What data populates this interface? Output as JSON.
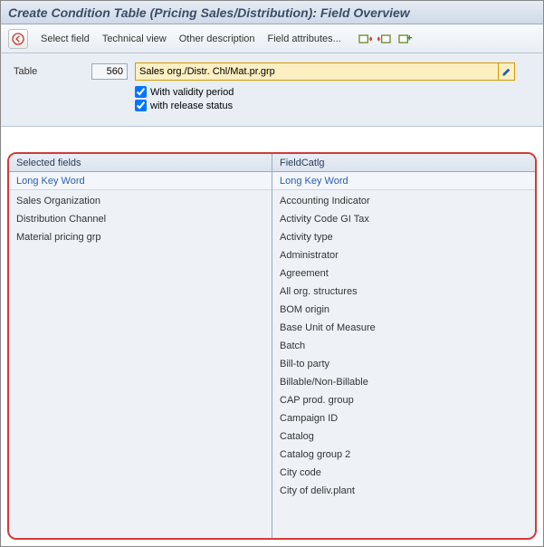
{
  "title": "Create Condition Table (Pricing Sales/Distribution): Field Overview",
  "toolbar": {
    "select_field": "Select field",
    "technical_view": "Technical view",
    "other_desc": "Other description",
    "field_attrs": "Field attributes..."
  },
  "form": {
    "table_label": "Table",
    "table_num": "560",
    "description": "Sales org./Distr. Chl/Mat.pr.grp",
    "validity_label": "With validity period",
    "release_label": "with release status",
    "validity_checked": true,
    "release_checked": true
  },
  "panels": {
    "selected_header": "Selected fields",
    "catalog_header": "FieldCatlg",
    "sub_header": "Long Key Word"
  },
  "selected_fields": [
    "Sales Organization",
    "Distribution Channel",
    "Material pricing grp"
  ],
  "field_catalog": [
    "Accounting Indicator",
    "Activity Code GI Tax",
    "Activity type",
    "Administrator",
    "Agreement",
    "All org. structures",
    "BOM origin",
    "Base Unit of Measure",
    "Batch",
    "Bill-to party",
    "Billable/Non-Billable",
    "CAP prod. group",
    "Campaign ID",
    "Catalog",
    "Catalog group 2",
    "City code",
    "City of deliv.plant"
  ],
  "colors": {
    "highlight_border": "#d23a3a"
  }
}
